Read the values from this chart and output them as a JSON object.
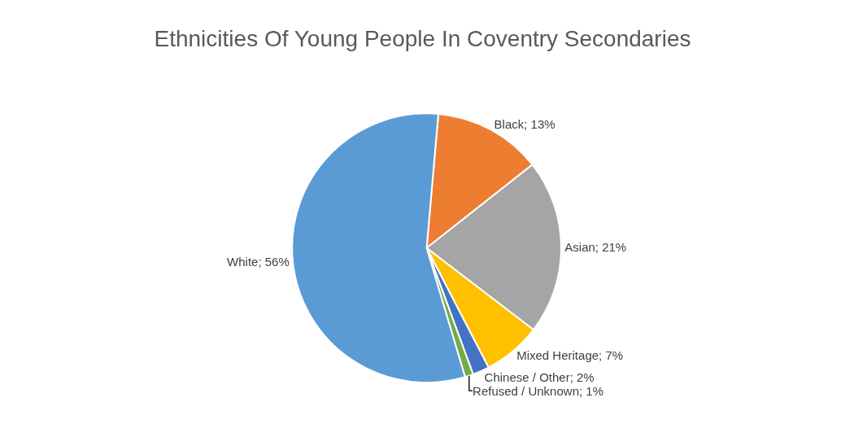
{
  "chart_data": {
    "type": "pie",
    "title": "Ethnicities Of Young People In Coventry Secondaries",
    "categories": [
      "Black",
      "Asian",
      "Mixed Heritage",
      "Chinese / Other",
      "Refused / Unknown",
      "White"
    ],
    "values": [
      13,
      21,
      7,
      2,
      1,
      56
    ],
    "colors": [
      "#ed7d31",
      "#a5a5a5",
      "#ffc000",
      "#4472c4",
      "#70ad47",
      "#5b9bd5"
    ],
    "value_labels": [
      "13%",
      "21%",
      "7%",
      "2%",
      "1%",
      "56%"
    ],
    "legend": false
  }
}
